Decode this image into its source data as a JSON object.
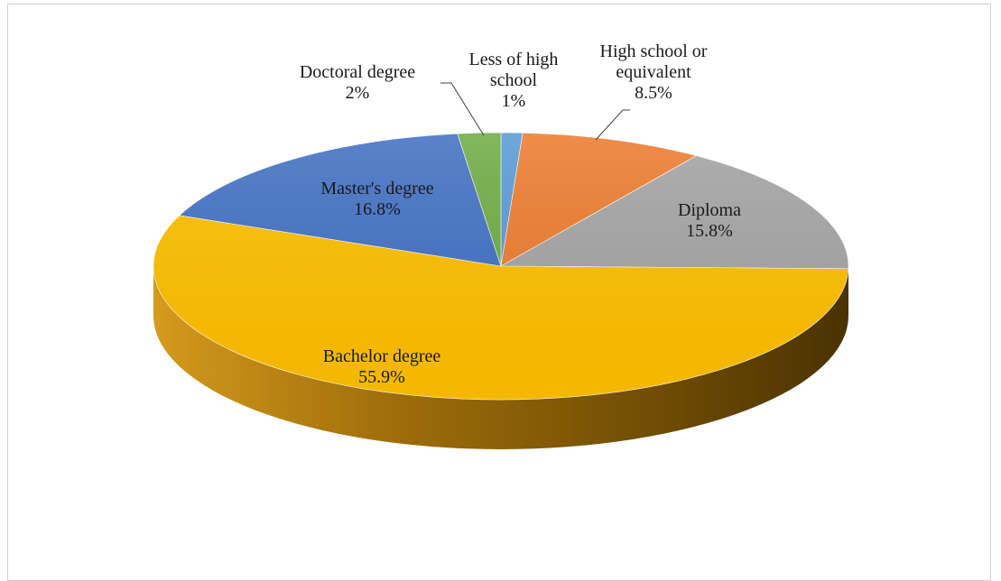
{
  "chart_data": {
    "type": "pie",
    "title": "",
    "style": "3d",
    "categories": [
      "Less of high school",
      "High school or equivalent",
      "Diploma",
      "Bachelor degree",
      "Master's degree",
      "Doctoral degree"
    ],
    "values": [
      1,
      8.5,
      15.8,
      55.9,
      16.8,
      2
    ],
    "labels": [
      {
        "lines": [
          "Less of high",
          "school"
        ],
        "value_text": "1%"
      },
      {
        "lines": [
          "High school or",
          "equivalent"
        ],
        "value_text": "8.5%"
      },
      {
        "lines": [
          "Diploma"
        ],
        "value_text": "15.8%"
      },
      {
        "lines": [
          "Bachelor degree"
        ],
        "value_text": "55.9%"
      },
      {
        "lines": [
          "Master's degree"
        ],
        "value_text": "16.8%"
      },
      {
        "lines": [
          "Doctoral degree"
        ],
        "value_text": "2%"
      }
    ],
    "colors": [
      "#5b9bd5",
      "#ed7d31",
      "#a5a5a5",
      "#ffc000",
      "#4472c4",
      "#70ad47"
    ],
    "legend": "none"
  }
}
